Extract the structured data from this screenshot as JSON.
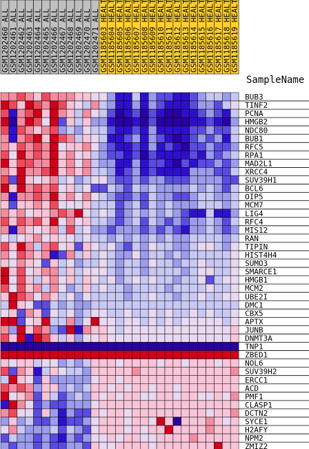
{
  "chart_data": {
    "type": "heatmap",
    "legend_title": "SampleName",
    "header_colors": {
      "ALL": "#c0c0c0",
      "HEALTHY": "#ffd030"
    },
    "palette": [
      "#d0001a",
      "#ee4a5e",
      "#f48ca0",
      "#f8c4d8",
      "#e8d8f0",
      "#c8c8f4",
      "#9c9cec",
      "#5a4ce0",
      "#2e10cc",
      "#2a00a0"
    ],
    "columns": [
      {
        "label": "GSM1202460_ALL",
        "group": "ALL"
      },
      {
        "label": "GSM1202461_ALL",
        "group": "ALL"
      },
      {
        "label": "GSM1202462_ALL",
        "group": "ALL"
      },
      {
        "label": "GSM1202463_ALL",
        "group": "ALL"
      },
      {
        "label": "GSM1202464_ALL",
        "group": "ALL"
      },
      {
        "label": "GSM1202465_ALL",
        "group": "ALL"
      },
      {
        "label": "GSM1202466_ALL",
        "group": "ALL"
      },
      {
        "label": "GSM1202467_ALL",
        "group": "ALL"
      },
      {
        "label": "GSM1202468_ALL",
        "group": "ALL"
      },
      {
        "label": "GSM1202469_ALL",
        "group": "ALL"
      },
      {
        "label": "GSM1202470_ALL",
        "group": "ALL"
      },
      {
        "label": "GSM1202471_ALL",
        "group": "ALL"
      },
      {
        "label": "GSM1185603_HEALTHY",
        "group": "HEALTHY"
      },
      {
        "label": "GSM1185604_HEALTHY",
        "group": "HEALTHY"
      },
      {
        "label": "GSM1185605_HEALTHY",
        "group": "HEALTHY"
      },
      {
        "label": "GSM1185606_HEALTHY",
        "group": "HEALTHY"
      },
      {
        "label": "GSM1185607_HEALTHY",
        "group": "HEALTHY"
      },
      {
        "label": "GSM1185608_HEALTHY",
        "group": "HEALTHY"
      },
      {
        "label": "GSM1185609_HEALTHY",
        "group": "HEALTHY"
      },
      {
        "label": "GSM1185610_HEALTHY",
        "group": "HEALTHY"
      },
      {
        "label": "GSM1185611_HEALTHY",
        "group": "HEALTHY"
      },
      {
        "label": "GSM1185612_HEALTHY",
        "group": "HEALTHY"
      },
      {
        "label": "GSM1185613_HEALTHY",
        "group": "HEALTHY"
      },
      {
        "label": "GSM1185614_HEALTHY",
        "group": "HEALTHY"
      },
      {
        "label": "GSM1185615_HEALTHY",
        "group": "HEALTHY"
      },
      {
        "label": "GSM1185616_HEALTHY",
        "group": "HEALTHY"
      },
      {
        "label": "GSM1185617_HEALTHY",
        "group": "HEALTHY"
      },
      {
        "label": "GSM1185618_HEALTHY",
        "group": "HEALTHY"
      },
      {
        "label": "GSM1185619_HEALTHY",
        "group": "HEALTHY"
      }
    ],
    "rows": [
      "BUB3",
      "TINF2",
      "PCNA",
      "HMGB2",
      "NDC80",
      "BUB1",
      "RFC5",
      "RPA1",
      "MAD2L1",
      "XRCC4",
      "SUV39H1",
      "BCL6",
      "OIP5",
      "MCM7",
      "LIG4",
      "RFC4",
      "MIS12",
      "RAN",
      "TIPIN",
      "HIST4H4",
      "SUMO3",
      "SMARCE1",
      "HMGB1",
      "MCM2",
      "UBE2I",
      "DMC1",
      "CBX5",
      "APTX",
      "JUNB",
      "DNMT3A",
      "TNP1",
      "ZBED1",
      "NOL6",
      "SUV39H2",
      "ERCC1",
      "ACD",
      "PMF1",
      "CLASP1",
      "DCTN2",
      "SYCE1",
      "H2AFY",
      "NPM2",
      "ZMIZ2"
    ],
    "values": [
      [
        2,
        2,
        1,
        2,
        3,
        1,
        2,
        2,
        2,
        3,
        3,
        4,
        4,
        6,
        8,
        8,
        5,
        8,
        6,
        7,
        7,
        8,
        8,
        7,
        6,
        5,
        5,
        6,
        5
      ],
      [
        0,
        1,
        3,
        0,
        1,
        2,
        0,
        1,
        3,
        4,
        5,
        2,
        5,
        6,
        8,
        8,
        6,
        8,
        6,
        7,
        8,
        8,
        8,
        7,
        6,
        6,
        7,
        5,
        4
      ],
      [
        1,
        8,
        2,
        1,
        0,
        3,
        0,
        2,
        3,
        5,
        2,
        4,
        5,
        7,
        9,
        8,
        7,
        9,
        7,
        8,
        9,
        9,
        8,
        8,
        7,
        6,
        7,
        8,
        5
      ],
      [
        0,
        9,
        2,
        0,
        1,
        4,
        0,
        7,
        3,
        5,
        3,
        6,
        6,
        8,
        9,
        9,
        8,
        9,
        7,
        9,
        9,
        9,
        9,
        8,
        8,
        7,
        8,
        9,
        6
      ],
      [
        1,
        8,
        1,
        2,
        3,
        2,
        1,
        6,
        5,
        6,
        4,
        5,
        5,
        7,
        8,
        8,
        7,
        8,
        6,
        8,
        8,
        8,
        8,
        7,
        7,
        6,
        7,
        7,
        5
      ],
      [
        2,
        8,
        2,
        1,
        0,
        3,
        0,
        1,
        2,
        5,
        3,
        4,
        5,
        8,
        8,
        7,
        6,
        8,
        6,
        7,
        8,
        9,
        8,
        7,
        6,
        7,
        6,
        8,
        5
      ],
      [
        2,
        3,
        1,
        2,
        1,
        2,
        0,
        4,
        3,
        3,
        2,
        4,
        6,
        7,
        8,
        8,
        7,
        8,
        6,
        8,
        7,
        8,
        9,
        7,
        7,
        6,
        7,
        7,
        6
      ],
      [
        1,
        4,
        0,
        2,
        1,
        2,
        0,
        3,
        2,
        4,
        3,
        5,
        6,
        7,
        7,
        8,
        7,
        9,
        7,
        8,
        8,
        8,
        8,
        7,
        8,
        6,
        7,
        6,
        5
      ],
      [
        0,
        3,
        1,
        1,
        2,
        2,
        0,
        3,
        2,
        4,
        2,
        5,
        6,
        6,
        8,
        8,
        6,
        8,
        7,
        7,
        8,
        9,
        7,
        8,
        7,
        7,
        6,
        7,
        6
      ],
      [
        2,
        3,
        0,
        2,
        2,
        1,
        0,
        3,
        2,
        3,
        2,
        5,
        5,
        6,
        8,
        7,
        6,
        8,
        7,
        8,
        8,
        8,
        8,
        6,
        6,
        6,
        7,
        7,
        5
      ],
      [
        1,
        7,
        0,
        3,
        4,
        3,
        2,
        5,
        4,
        6,
        5,
        4,
        4,
        6,
        7,
        7,
        6,
        7,
        6,
        6,
        7,
        7,
        7,
        6,
        6,
        6,
        6,
        7,
        7
      ],
      [
        0,
        3,
        0,
        2,
        1,
        2,
        1,
        4,
        3,
        5,
        4,
        7,
        7,
        5,
        6,
        7,
        5,
        6,
        5,
        6,
        6,
        6,
        6,
        5,
        6,
        5,
        6,
        7,
        5
      ],
      [
        2,
        8,
        2,
        2,
        1,
        2,
        0,
        3,
        2,
        4,
        2,
        4,
        5,
        6,
        7,
        7,
        6,
        7,
        5,
        6,
        6,
        7,
        7,
        6,
        5,
        5,
        6,
        6,
        5
      ],
      [
        3,
        7,
        3,
        3,
        2,
        3,
        1,
        4,
        4,
        4,
        3,
        5,
        5,
        5,
        7,
        6,
        5,
        7,
        5,
        6,
        5,
        6,
        6,
        6,
        5,
        5,
        5,
        6,
        5
      ],
      [
        2,
        3,
        2,
        4,
        3,
        3,
        2,
        1,
        2,
        0,
        4,
        5,
        4,
        5,
        7,
        6,
        5,
        6,
        5,
        6,
        5,
        6,
        7,
        8,
        8,
        5,
        8,
        8,
        6
      ],
      [
        1,
        3,
        1,
        2,
        1,
        3,
        0,
        4,
        2,
        4,
        3,
        5,
        5,
        6,
        7,
        6,
        5,
        7,
        5,
        6,
        7,
        6,
        7,
        6,
        6,
        5,
        6,
        7,
        5
      ],
      [
        2,
        8,
        2,
        3,
        4,
        3,
        2,
        5,
        1,
        5,
        4,
        6,
        6,
        7,
        6,
        6,
        6,
        7,
        6,
        7,
        6,
        7,
        8,
        6,
        6,
        5,
        6,
        7,
        6
      ],
      [
        4,
        5,
        4,
        3,
        2,
        4,
        3,
        4,
        4,
        5,
        4,
        5,
        5,
        6,
        5,
        6,
        5,
        6,
        5,
        6,
        5,
        6,
        6,
        5,
        5,
        5,
        5,
        6,
        5
      ],
      [
        1,
        3,
        0,
        2,
        5,
        2,
        1,
        4,
        3,
        7,
        3,
        4,
        5,
        4,
        6,
        7,
        5,
        6,
        4,
        5,
        5,
        6,
        6,
        5,
        4,
        4,
        5,
        6,
        4
      ],
      [
        2,
        4,
        1,
        2,
        3,
        2,
        8,
        7,
        2,
        5,
        3,
        5,
        4,
        5,
        6,
        6,
        4,
        6,
        5,
        5,
        6,
        5,
        6,
        5,
        5,
        5,
        5,
        5,
        4
      ],
      [
        3,
        4,
        2,
        3,
        4,
        7,
        3,
        5,
        4,
        6,
        5,
        5,
        4,
        5,
        6,
        5,
        5,
        6,
        4,
        5,
        5,
        6,
        5,
        5,
        4,
        5,
        5,
        5,
        4
      ],
      [
        0,
        3,
        1,
        4,
        3,
        2,
        2,
        5,
        3,
        5,
        4,
        4,
        4,
        5,
        6,
        5,
        5,
        6,
        5,
        5,
        5,
        5,
        6,
        5,
        4,
        4,
        5,
        5,
        4
      ],
      [
        0,
        4,
        1,
        3,
        5,
        3,
        2,
        4,
        3,
        5,
        3,
        4,
        5,
        4,
        6,
        5,
        4,
        5,
        4,
        5,
        5,
        6,
        5,
        5,
        4,
        7,
        5,
        4,
        4
      ],
      [
        1,
        4,
        1,
        3,
        2,
        5,
        2,
        4,
        6,
        5,
        3,
        5,
        4,
        5,
        5,
        6,
        5,
        5,
        5,
        5,
        6,
        5,
        5,
        5,
        5,
        4,
        5,
        5,
        4
      ],
      [
        3,
        0,
        1,
        2,
        4,
        2,
        3,
        5,
        4,
        6,
        4,
        5,
        5,
        5,
        5,
        6,
        5,
        5,
        4,
        5,
        5,
        6,
        5,
        5,
        4,
        5,
        5,
        4,
        4
      ],
      [
        5,
        0,
        3,
        4,
        7,
        7,
        5,
        6,
        5,
        6,
        6,
        5,
        5,
        5,
        5,
        5,
        5,
        5,
        5,
        5,
        5,
        5,
        5,
        5,
        5,
        5,
        5,
        5,
        5
      ],
      [
        4,
        3,
        7,
        2,
        3,
        7,
        4,
        5,
        4,
        6,
        5,
        4,
        4,
        5,
        5,
        4,
        5,
        5,
        4,
        5,
        4,
        5,
        5,
        4,
        5,
        4,
        5,
        5,
        4
      ],
      [
        0,
        0,
        7,
        4,
        3,
        0,
        5,
        5,
        2,
        6,
        4,
        0,
        4,
        4,
        5,
        4,
        4,
        5,
        4,
        5,
        4,
        5,
        4,
        4,
        4,
        4,
        4,
        5,
        4
      ],
      [
        2,
        6,
        0,
        3,
        1,
        2,
        6,
        7,
        0,
        8,
        2,
        3,
        3,
        4,
        5,
        4,
        4,
        4,
        4,
        4,
        4,
        4,
        4,
        4,
        4,
        4,
        4,
        4,
        3
      ],
      [
        1,
        3,
        0,
        8,
        0,
        1,
        3,
        5,
        3,
        6,
        4,
        4,
        3,
        4,
        4,
        4,
        4,
        4,
        4,
        4,
        4,
        4,
        4,
        4,
        4,
        4,
        4,
        4,
        3
      ],
      [
        9,
        9,
        9,
        9,
        9,
        9,
        9,
        9,
        9,
        9,
        9,
        9,
        9,
        9,
        9,
        9,
        9,
        9,
        9,
        9,
        9,
        9,
        9,
        9,
        9,
        9,
        9,
        9,
        9
      ],
      [
        0,
        0,
        0,
        0,
        0,
        0,
        0,
        0,
        0,
        0,
        0,
        0,
        0,
        0,
        0,
        0,
        0,
        0,
        0,
        0,
        0,
        0,
        0,
        0,
        0,
        0,
        0,
        0,
        0
      ],
      [
        3,
        4,
        3,
        3,
        5,
        4,
        4,
        6,
        5,
        6,
        5,
        3,
        3,
        3,
        4,
        3,
        3,
        3,
        3,
        4,
        3,
        3,
        4,
        3,
        3,
        3,
        4,
        3,
        3
      ],
      [
        1,
        7,
        2,
        3,
        8,
        5,
        3,
        4,
        5,
        5,
        6,
        3,
        3,
        3,
        3,
        3,
        2,
        3,
        3,
        3,
        3,
        3,
        3,
        3,
        3,
        3,
        3,
        3,
        2
      ],
      [
        5,
        0,
        3,
        4,
        7,
        3,
        6,
        6,
        6,
        6,
        6,
        4,
        3,
        3,
        4,
        3,
        3,
        3,
        3,
        3,
        3,
        3,
        3,
        3,
        3,
        3,
        3,
        3,
        3
      ],
      [
        1,
        2,
        1,
        2,
        6,
        3,
        3,
        6,
        5,
        6,
        5,
        3,
        3,
        4,
        3,
        4,
        3,
        3,
        4,
        3,
        3,
        4,
        3,
        3,
        3,
        3,
        3,
        3,
        3
      ],
      [
        0,
        4,
        3,
        2,
        7,
        3,
        5,
        7,
        6,
        5,
        6,
        3,
        4,
        3,
        4,
        3,
        3,
        4,
        4,
        3,
        3,
        4,
        3,
        3,
        4,
        4,
        3,
        4,
        2
      ],
      [
        8,
        0,
        2,
        4,
        7,
        6,
        7,
        7,
        6,
        6,
        6,
        4,
        3,
        3,
        3,
        3,
        3,
        3,
        3,
        3,
        3,
        3,
        3,
        3,
        3,
        3,
        3,
        3,
        3
      ],
      [
        2,
        1,
        4,
        4,
        7,
        3,
        6,
        8,
        6,
        7,
        7,
        3,
        4,
        3,
        3,
        4,
        3,
        3,
        3,
        3,
        3,
        3,
        3,
        3,
        3,
        4,
        3,
        3,
        2
      ],
      [
        6,
        3,
        6,
        5,
        7,
        7,
        6,
        8,
        7,
        7,
        6,
        4,
        3,
        3,
        3,
        4,
        3,
        3,
        4,
        0,
        3,
        9,
        3,
        3,
        3,
        2,
        3,
        4,
        3
      ],
      [
        4,
        2,
        5,
        6,
        6,
        6,
        5,
        7,
        5,
        6,
        7,
        4,
        3,
        3,
        3,
        4,
        3,
        4,
        3,
        3,
        0,
        3,
        3,
        3,
        3,
        2,
        3,
        3,
        3
      ],
      [
        7,
        5,
        6,
        6,
        7,
        6,
        7,
        8,
        6,
        7,
        6,
        4,
        4,
        3,
        4,
        3,
        3,
        4,
        4,
        3,
        3,
        3,
        3,
        2,
        3,
        3,
        3,
        3,
        3
      ],
      [
        6,
        7,
        6,
        6,
        7,
        6,
        7,
        7,
        6,
        6,
        7,
        3,
        4,
        4,
        3,
        3,
        3,
        3,
        4,
        3,
        3,
        3,
        3,
        3,
        3,
        3,
        0,
        3,
        3
      ]
    ]
  }
}
